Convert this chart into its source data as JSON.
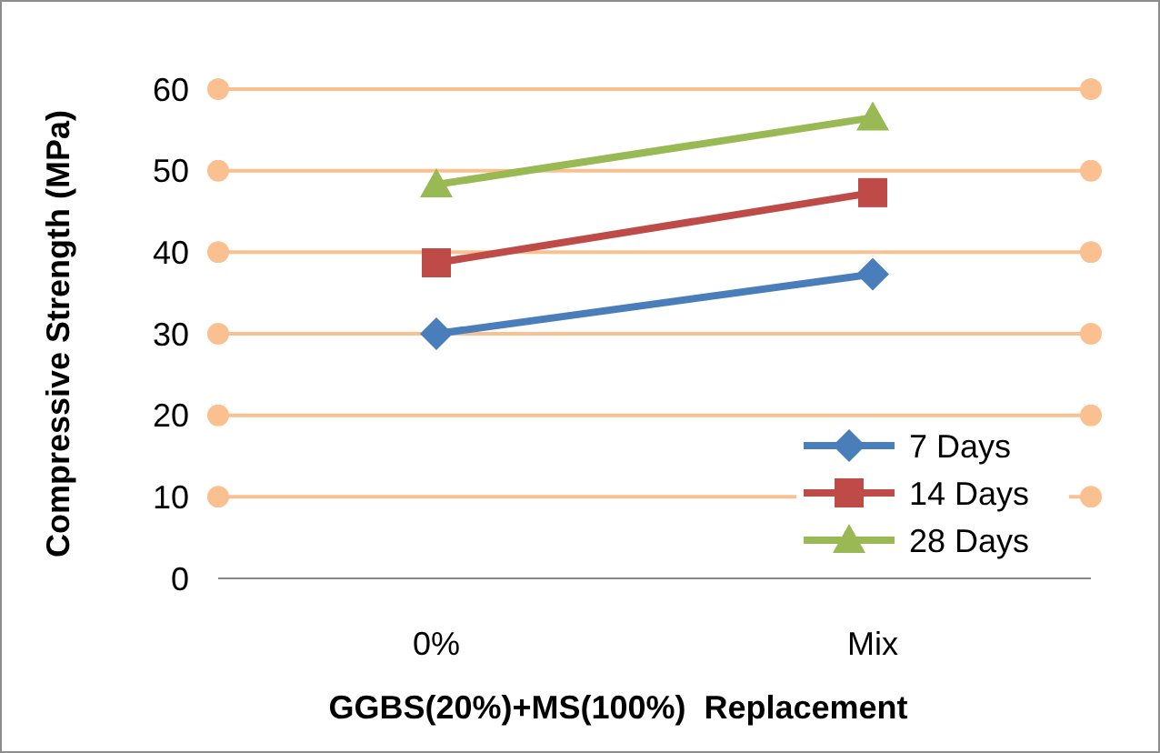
{
  "chart_data": {
    "type": "line",
    "xlabel": "GGBS(20%)+MS(100%)  Replacement",
    "ylabel": "Compressive Strength (MPa)",
    "categories": [
      "0%",
      "Mix"
    ],
    "ylim": [
      0,
      60
    ],
    "yticks": [
      0,
      10,
      20,
      30,
      40,
      50,
      60
    ],
    "grid": "y",
    "legend": "bottom right",
    "line_style": "solid",
    "series": [
      {
        "name": "7 Days",
        "color": "#4a7ebb",
        "marker": "diamond",
        "values": [
          30,
          37.3
        ]
      },
      {
        "name": "14 Days",
        "color": "#be4b48",
        "marker": "square",
        "values": [
          38.7,
          47.3
        ]
      },
      {
        "name": "28 Days",
        "color": "#98b954",
        "marker": "triangle",
        "values": [
          48.3,
          56.5
        ]
      }
    ]
  }
}
